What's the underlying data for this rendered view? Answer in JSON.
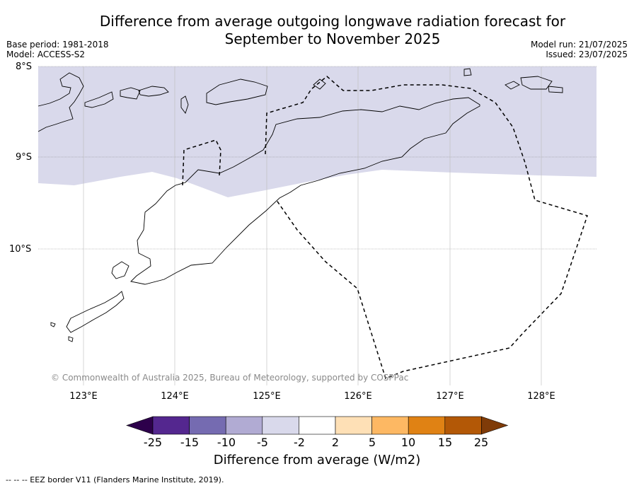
{
  "title_line1": "Difference from average outgoing longwave radiation forecast for",
  "title_line2": "September to November 2025",
  "base_period": "Base period: 1981-2018",
  "model": "Model: ACCESS-S2",
  "model_run": "Model run: 21/07/2025",
  "issued": "Issued: 23/07/2025",
  "lat_labels": [
    "8°S",
    "9°S",
    "10°S"
  ],
  "lon_labels": [
    "123°E",
    "124°E",
    "125°E",
    "126°E",
    "127°E",
    "128°E"
  ],
  "copyright": "© Commonwealth of Australia 2025, Bureau of Meteorology, supported by COSPPac",
  "colorbar": {
    "ticks": [
      "-25",
      "-15",
      "-10",
      "-5",
      "-2",
      "2",
      "5",
      "10",
      "15",
      "25"
    ],
    "colors": [
      "#54278f",
      "#756bb1",
      "#b1abd3",
      "#d9d9eb",
      "#ffffff",
      "#fee0b6",
      "#fdb863",
      "#e08214",
      "#b35806"
    ],
    "under_color": "#2d004b",
    "over_color": "#7f3b08",
    "label": "Difference from average (W/m2)"
  },
  "map_fill_color": "#d9d9eb",
  "footer": "--  --  -- EEZ border V11 (Flanders Marine Institute, 2019)."
}
